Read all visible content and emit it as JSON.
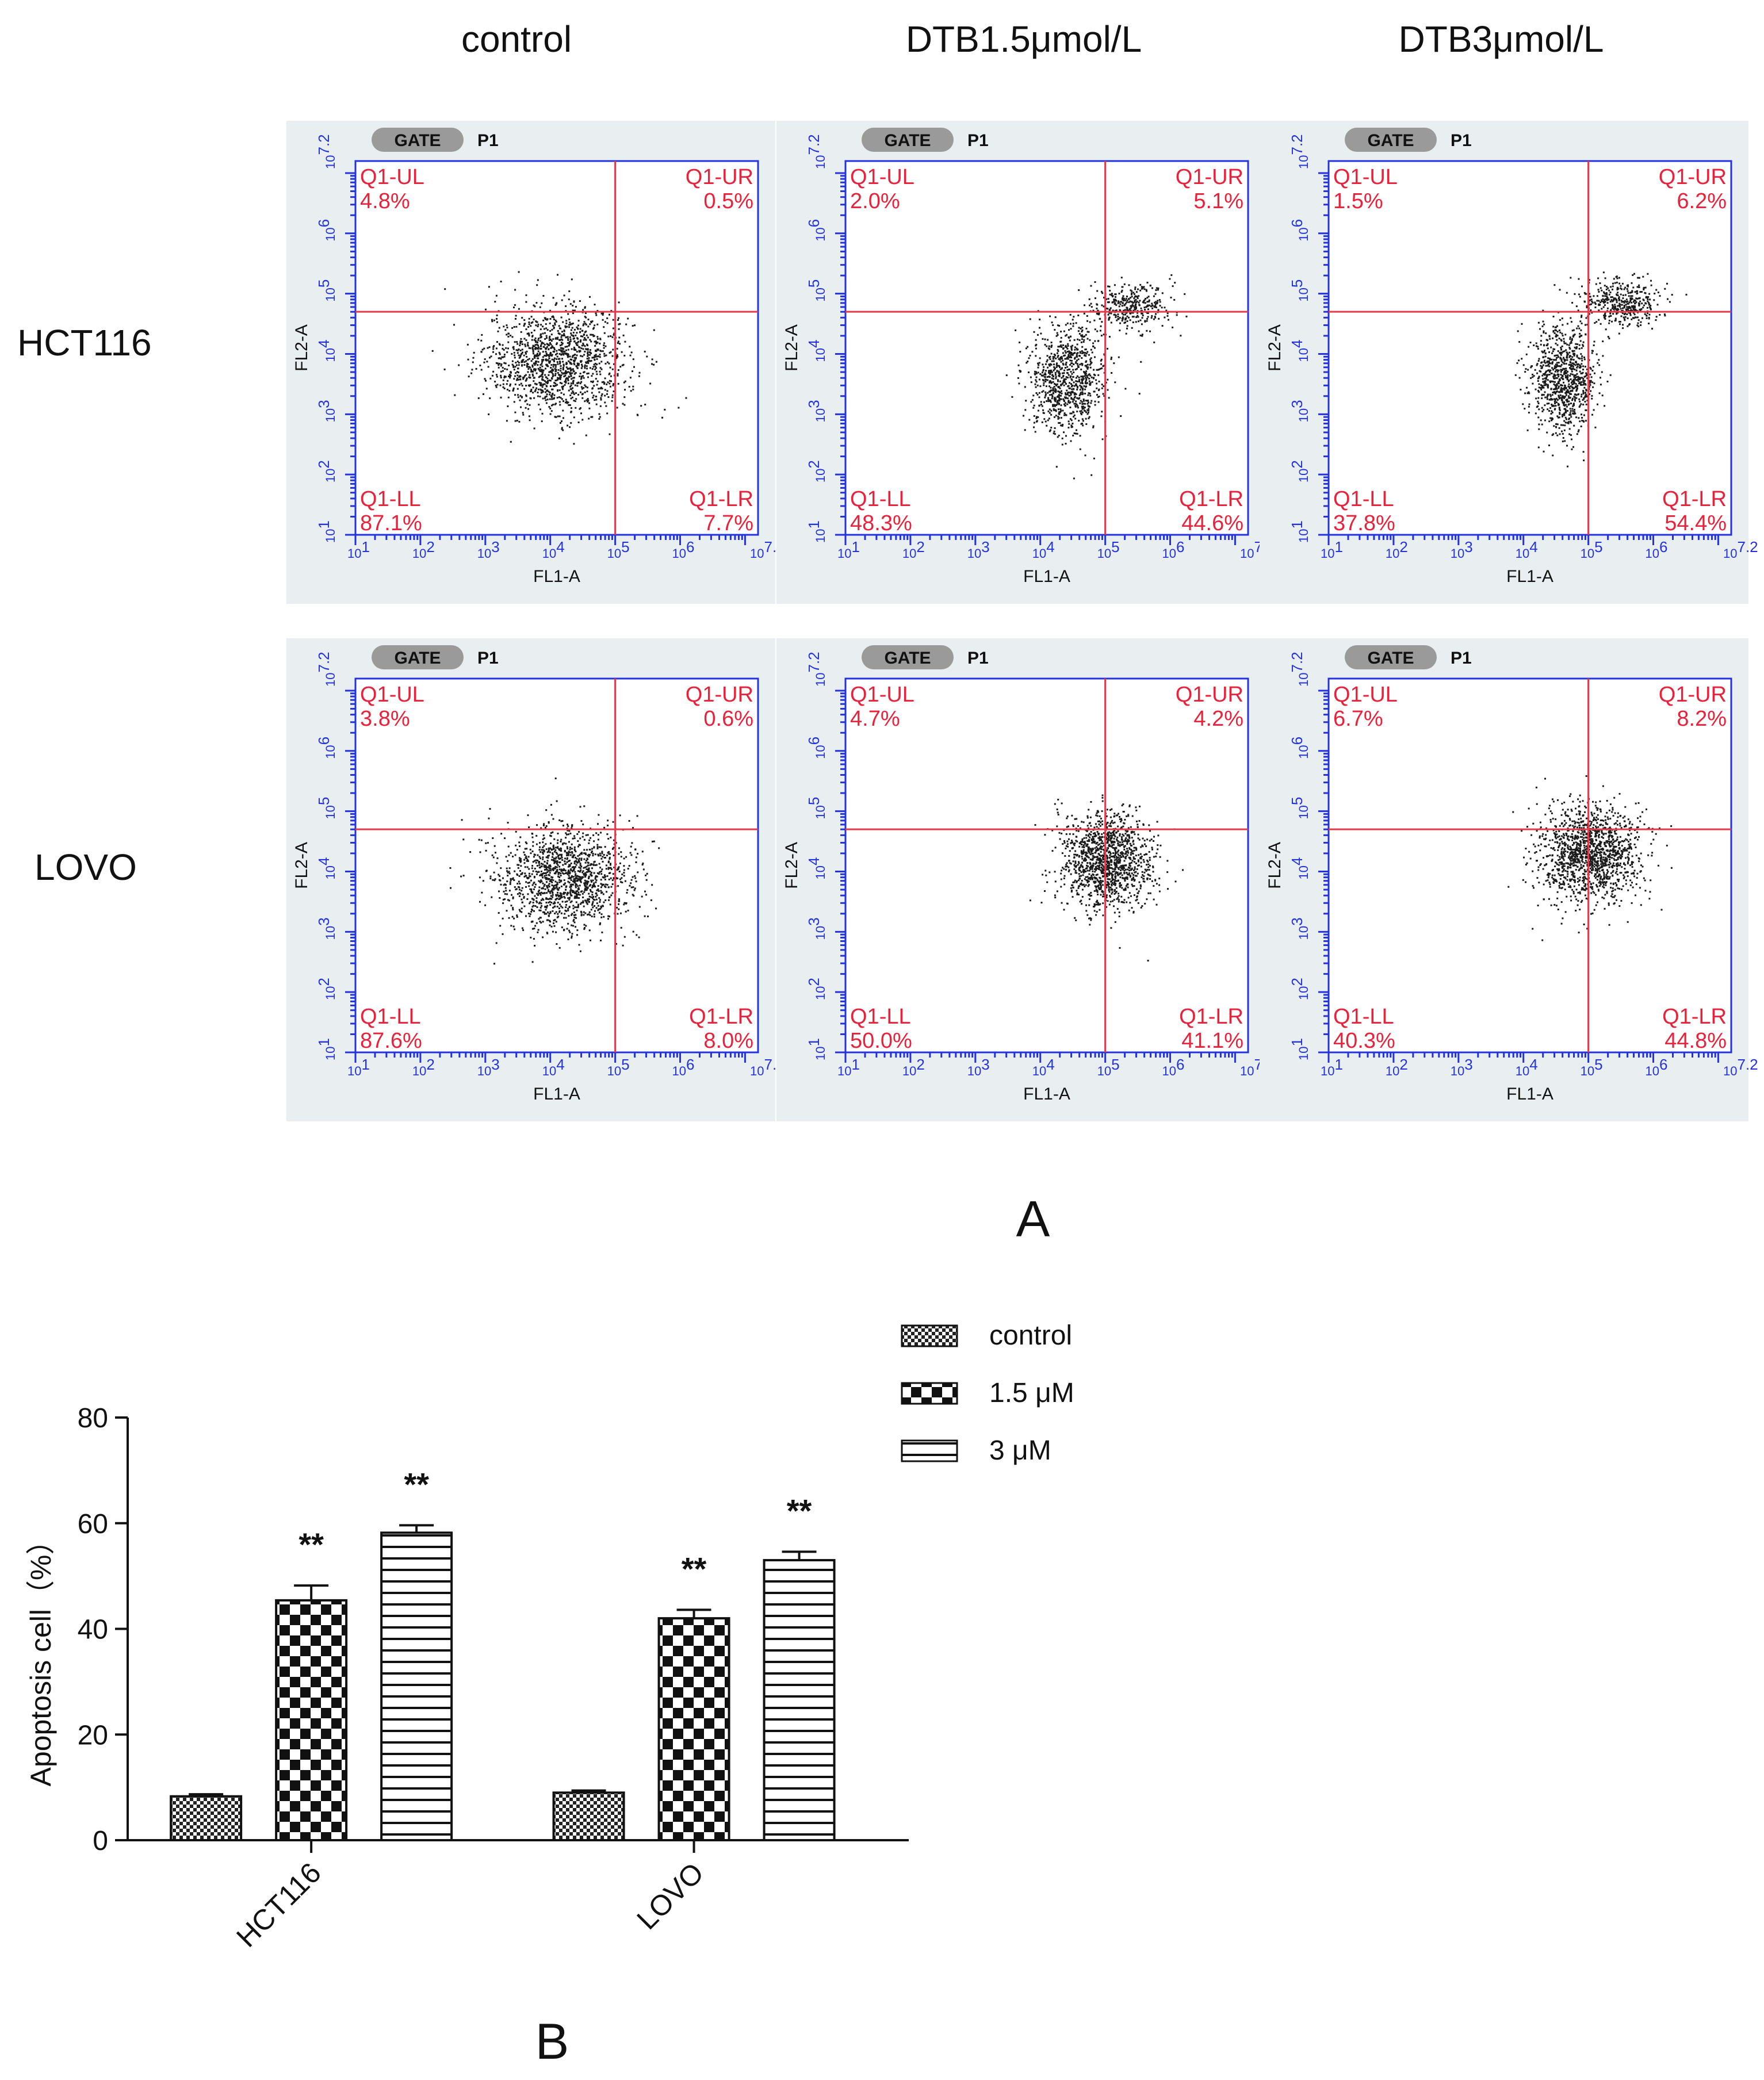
{
  "panel_a": {
    "label": "A",
    "column_headers": [
      "control",
      "DTB1.5μmol/L",
      "DTB3μmol/L"
    ],
    "row_headers": [
      "HCT116",
      "LOVO"
    ],
    "plot_common": {
      "gate_label": "GATE",
      "gate_name": "P1",
      "x_axis_label": "FL1-A",
      "y_axis_label": "FL2-A",
      "tick_labels": [
        "10^1",
        "10^2",
        "10^3",
        "10^4",
        "10^5",
        "10^6",
        "10^7.2"
      ],
      "quadrant_names": [
        "Q1-UL",
        "Q1-UR",
        "Q1-LL",
        "Q1-LR"
      ]
    },
    "plots": [
      {
        "row": "HCT116",
        "column": "control",
        "UL": "4.8%",
        "UR": "0.5%",
        "LL": "87.1%",
        "LR": "7.7%",
        "gate_x_log": 5.0,
        "gate_y_log": 4.7
      },
      {
        "row": "HCT116",
        "column": "DTB1.5μmol/L",
        "UL": "2.0%",
        "UR": "5.1%",
        "LL": "48.3%",
        "LR": "44.6%",
        "gate_x_log": 5.0,
        "gate_y_log": 4.7
      },
      {
        "row": "HCT116",
        "column": "DTB3μmol/L",
        "UL": "1.5%",
        "UR": "6.2%",
        "LL": "37.8%",
        "LR": "54.4%",
        "gate_x_log": 5.0,
        "gate_y_log": 4.7
      },
      {
        "row": "LOVO",
        "column": "control",
        "UL": "3.8%",
        "UR": "0.6%",
        "LL": "87.6%",
        "LR": "8.0%",
        "gate_x_log": 5.0,
        "gate_y_log": 4.7
      },
      {
        "row": "LOVO",
        "column": "DTB1.5μmol/L",
        "UL": "4.7%",
        "UR": "4.2%",
        "LL": "50.0%",
        "LR": "41.1%",
        "gate_x_log": 5.0,
        "gate_y_log": 4.7
      },
      {
        "row": "LOVO",
        "column": "DTB3μmol/L",
        "UL": "6.7%",
        "UR": "8.2%",
        "LL": "40.3%",
        "LR": "44.8%",
        "gate_x_log": 5.0,
        "gate_y_log": 4.7
      }
    ]
  },
  "panel_b": {
    "label": "B"
  },
  "chart_data": {
    "type": "bar",
    "title": "",
    "xlabel": "",
    "ylabel": "Apoptosis cell（%）",
    "ylim": [
      0,
      80
    ],
    "yticks": [
      0,
      20,
      40,
      60,
      80
    ],
    "categories": [
      "HCT116",
      "LOVO"
    ],
    "legend_position": "top-right",
    "series": [
      {
        "name": "control",
        "pattern": "checker-fine",
        "values": [
          8.3,
          9.0
        ],
        "errors": [
          0.4,
          0.4
        ],
        "annotations": [
          "",
          ""
        ]
      },
      {
        "name": "1.5 μM",
        "pattern": "checker-coarse",
        "values": [
          45.4,
          42.0
        ],
        "errors": [
          2.8,
          1.6
        ],
        "annotations": [
          "**",
          "**"
        ]
      },
      {
        "name": "3 μM",
        "pattern": "horizontal-stripes",
        "values": [
          58.2,
          53.0
        ],
        "errors": [
          1.4,
          1.6
        ],
        "annotations": [
          "**",
          "**"
        ]
      }
    ]
  }
}
